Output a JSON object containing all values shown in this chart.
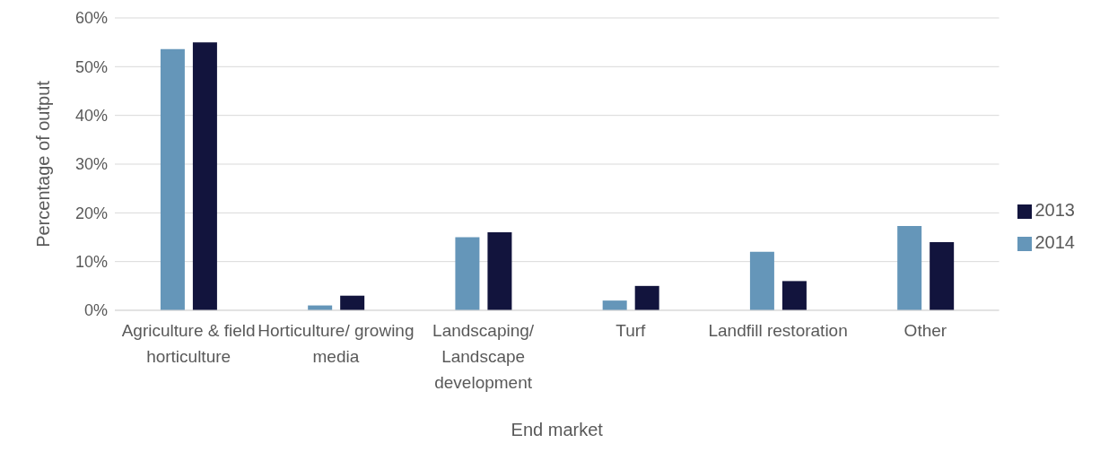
{
  "chart_data": {
    "type": "bar",
    "xlabel": "End market",
    "ylabel": "Percentage of output",
    "categories": [
      "Agriculture & field horticulture",
      "Horticulture/ growing media",
      "Landscaping/ Landscape development",
      "Turf",
      "Landfill restoration",
      "Other"
    ],
    "series": [
      {
        "name": "2014",
        "color": "#6596b9",
        "values": [
          53.6,
          1,
          15,
          2,
          12,
          17.3
        ]
      },
      {
        "name": "2013",
        "color": "#12143d",
        "values": [
          55,
          3,
          16,
          5,
          6,
          14
        ]
      }
    ],
    "ylim": [
      0,
      60
    ],
    "yticks": [
      {
        "value": 0,
        "label": "0%"
      },
      {
        "value": 10,
        "label": "10%"
      },
      {
        "value": 20,
        "label": "20%"
      },
      {
        "value": 30,
        "label": "30%"
      },
      {
        "value": 40,
        "label": "40%"
      },
      {
        "value": 50,
        "label": "50%"
      },
      {
        "value": 60,
        "label": "60%"
      }
    ],
    "grid": "y",
    "legend": "right"
  }
}
